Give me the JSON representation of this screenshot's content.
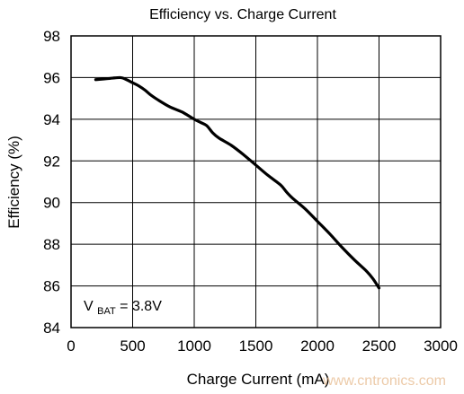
{
  "chart_data": {
    "type": "line",
    "title": "Efficiency vs. Charge Current",
    "xlabel": "Charge Current (mA)",
    "ylabel": "Efficiency (%)",
    "xlim": [
      0,
      3000
    ],
    "ylim": [
      84,
      98
    ],
    "xticks": [
      "0",
      "500",
      "1000",
      "1500",
      "2000",
      "2500",
      "3000"
    ],
    "yticks": [
      "84",
      "86",
      "88",
      "90",
      "92",
      "94",
      "96",
      "98"
    ],
    "grid": true,
    "annotation": {
      "prefix": "V",
      "subscript": "BAT",
      "suffix": " = 3.8V"
    },
    "series": [
      {
        "color": "#000000",
        "x": [
          200,
          300,
          400,
          450,
          500,
          550,
          600,
          650,
          700,
          800,
          900,
          1000,
          1050,
          1100,
          1150,
          1200,
          1300,
          1400,
          1500,
          1600,
          1700,
          1750,
          1800,
          1900,
          2000,
          2100,
          2200,
          2300,
          2400,
          2450,
          2500
        ],
        "y": [
          95.9,
          95.95,
          96.0,
          95.9,
          95.75,
          95.6,
          95.4,
          95.15,
          94.95,
          94.6,
          94.35,
          94.0,
          93.85,
          93.7,
          93.35,
          93.1,
          92.75,
          92.3,
          91.8,
          91.3,
          90.85,
          90.5,
          90.2,
          89.7,
          89.1,
          88.5,
          87.85,
          87.25,
          86.7,
          86.35,
          85.9
        ]
      }
    ]
  },
  "watermark": "www.cntronics.com"
}
